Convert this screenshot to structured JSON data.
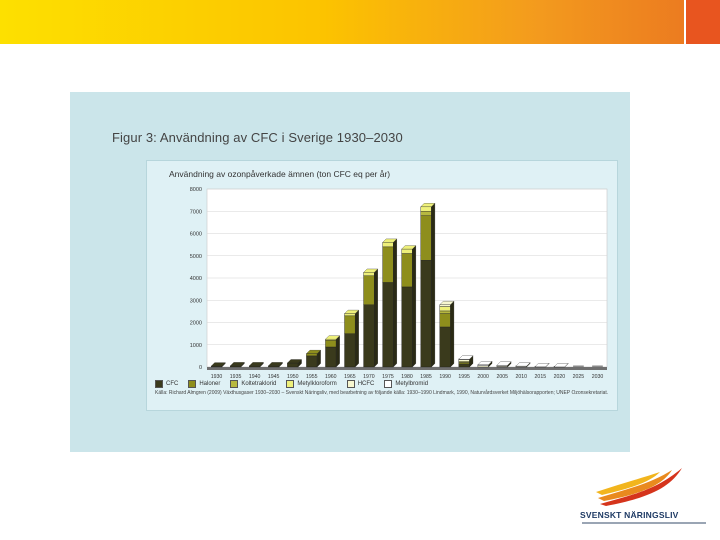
{
  "figure": {
    "title": "Figur 3: Användning av CFC i Sverige 1930–2030"
  },
  "chart_data": {
    "type": "bar",
    "stacked": true,
    "title": "Användning av ozonpåverkade ämnen (ton CFC eq per år)",
    "categories": [
      "1930",
      "1935",
      "1940",
      "1945",
      "1950",
      "1955",
      "1960",
      "1965",
      "1970",
      "1975",
      "1980",
      "1985",
      "1990",
      "1995",
      "2000",
      "2005",
      "2010",
      "2015",
      "2020",
      "2025",
      "2030"
    ],
    "ylim": [
      0,
      8000
    ],
    "yticks": [
      0,
      1000,
      2000,
      3000,
      4000,
      5000,
      6000,
      7000,
      8000
    ],
    "grid": true,
    "legend_position": "bottom",
    "series": [
      {
        "name": "CFC",
        "color": "#3a3a1c",
        "values": [
          40,
          50,
          50,
          50,
          180,
          500,
          900,
          1500,
          2800,
          3800,
          3600,
          4800,
          1800,
          120,
          0,
          0,
          0,
          0,
          0,
          0,
          0
        ]
      },
      {
        "name": "Haloner",
        "color": "#8e8e1c",
        "values": [
          0,
          0,
          0,
          0,
          0,
          100,
          300,
          800,
          1300,
          1600,
          1500,
          2000,
          600,
          60,
          0,
          0,
          0,
          0,
          0,
          0,
          0
        ]
      },
      {
        "name": "Koltetraklorid",
        "color": "#b7b840",
        "values": [
          0,
          0,
          0,
          0,
          0,
          0,
          0,
          0,
          0,
          0,
          0,
          200,
          120,
          40,
          0,
          0,
          0,
          0,
          0,
          0,
          0
        ]
      },
      {
        "name": "Metylkloroform",
        "color": "#eef07a",
        "values": [
          0,
          0,
          0,
          0,
          0,
          0,
          50,
          100,
          150,
          200,
          200,
          200,
          200,
          30,
          0,
          0,
          0,
          0,
          0,
          0,
          0
        ]
      },
      {
        "name": "HCFC",
        "color": "#f7f7d0",
        "values": [
          0,
          0,
          0,
          0,
          0,
          0,
          0,
          0,
          0,
          0,
          0,
          0,
          80,
          80,
          60,
          40,
          20,
          0,
          0,
          0,
          0
        ]
      },
      {
        "name": "Metylbromid",
        "color": "#ffffff",
        "values": [
          0,
          0,
          0,
          0,
          0,
          0,
          0,
          0,
          0,
          0,
          0,
          0,
          0,
          20,
          40,
          40,
          20,
          10,
          5,
          0,
          0
        ]
      }
    ],
    "source": "Källa: Richard Almgren (2009) Växthusgaser 1930–2030 – Svenskt Näringsliv, med bearbetning av följande källa: 1930–1990 Lindmark, 1990, Naturvårdsverket Miljöhälsorapporten; UNEP Ozonsekretariat."
  },
  "logo": {
    "name": "SVENSKT NÄRINGSLIV",
    "colors": {
      "orange": "#e98a1e",
      "red": "#d5341c",
      "yellow": "#f2b51d",
      "navy": "#1e3a64"
    }
  }
}
